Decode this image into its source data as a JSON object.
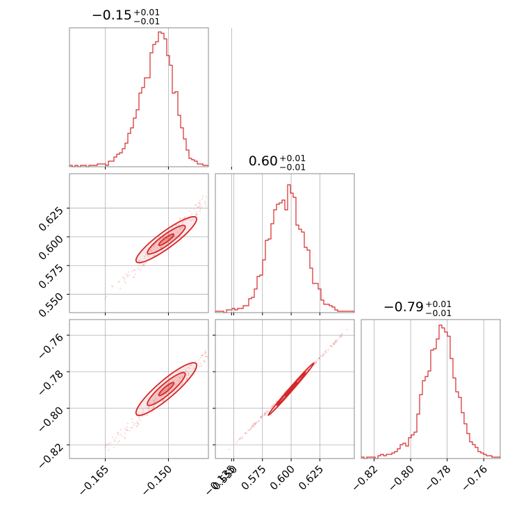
{
  "chart_data": {
    "type": "corner",
    "color": "#d62728",
    "grid": true,
    "parameters": [
      {
        "title": {
          "value": "−0.15",
          "plus": "+0.01",
          "minus": "−0.01"
        },
        "range": [
          -0.1735,
          -0.1405
        ],
        "ticks": [
          -0.165,
          -0.15,
          -0.135
        ],
        "tick_labels": [
          "−0.165",
          "−0.150",
          "−0.135"
        ],
        "hist_values": [
          0.01,
          0,
          0.01,
          0,
          0.01,
          0.01,
          0,
          0.01,
          0.01,
          0.01,
          0.02,
          0.02,
          0.02,
          0.01,
          0.04,
          0.04,
          0.07,
          0.09,
          0.1,
          0.13,
          0.17,
          0.24,
          0.28,
          0.35,
          0.41,
          0.53,
          0.57,
          0.64,
          0.64,
          0.82,
          0.88,
          0.9,
          0.97,
          0.96,
          0.92,
          0.8,
          0.73,
          0.53,
          0.54,
          0.37,
          0.28,
          0.2,
          0.12,
          0.06,
          0.05,
          0.04,
          0.02,
          0.02,
          0.01,
          0.01
        ]
      },
      {
        "title": {
          "value": "0.60",
          "plus": "+0.01",
          "minus": "−0.01"
        },
        "range": [
          0.534,
          0.655
        ],
        "ticks": [
          0.55,
          0.575,
          0.6,
          0.625
        ],
        "tick_labels": [
          "0.550",
          "0.575",
          "0.600",
          "0.625"
        ],
        "hist_values": [
          0.01,
          0.01,
          0.01,
          0,
          0.02,
          0.02,
          0.03,
          0.02,
          0.03,
          0.03,
          0.05,
          0.05,
          0.1,
          0.11,
          0.17,
          0.26,
          0.27,
          0.38,
          0.52,
          0.53,
          0.64,
          0.74,
          0.78,
          0.79,
          0.81,
          0.74,
          0.92,
          0.86,
          0.83,
          0.63,
          0.6,
          0.58,
          0.47,
          0.45,
          0.32,
          0.21,
          0.21,
          0.17,
          0.09,
          0.06,
          0.06,
          0.05,
          0.04,
          0.02,
          0.01,
          0.01,
          0.01,
          0.01,
          0.01,
          0.01
        ]
      },
      {
        "title": {
          "value": "−0.79",
          "plus": "+0.01",
          "minus": "−0.01"
        },
        "range": [
          -0.827,
          -0.751
        ],
        "ticks": [
          -0.82,
          -0.8,
          -0.78,
          -0.76
        ],
        "tick_labels": [
          "−0.82",
          "−0.80",
          "−0.78",
          "−0.76"
        ],
        "hist_values": [
          0.01,
          0,
          0.01,
          0.01,
          0.01,
          0,
          0.02,
          0.03,
          0.02,
          0.03,
          0.03,
          0.04,
          0.05,
          0.07,
          0.1,
          0.11,
          0.09,
          0.15,
          0.17,
          0.19,
          0.32,
          0.46,
          0.56,
          0.59,
          0.63,
          0.78,
          0.79,
          0.86,
          0.96,
          0.94,
          0.91,
          0.88,
          0.72,
          0.58,
          0.48,
          0.44,
          0.33,
          0.25,
          0.18,
          0.12,
          0.1,
          0.08,
          0.05,
          0.04,
          0.03,
          0.02,
          0.02,
          0.01,
          0.01,
          0.01
        ]
      }
    ],
    "pairs": [
      {
        "row": 1,
        "col": 0,
        "center": [
          -0.1505,
          0.5975
        ],
        "sigma": [
          0.0045,
          0.0125
        ],
        "rho": 0.9,
        "contour_levels": [
          0.4,
          1.0,
          1.6
        ],
        "scatter_extent": [
          [
            -0.165,
            0.546
          ],
          [
            -0.137,
            0.647
          ]
        ]
      },
      {
        "row": 2,
        "col": 0,
        "center": [
          -0.1505,
          -0.7895
        ],
        "sigma": [
          0.0045,
          0.009
        ],
        "rho": 0.9,
        "contour_levels": [
          0.4,
          1.0,
          1.6
        ],
        "scatter_extent": [
          [
            -0.165,
            -0.823
          ],
          [
            -0.136,
            -0.761
          ]
        ]
      },
      {
        "row": 2,
        "col": 1,
        "center": [
          0.6,
          -0.7895
        ],
        "sigma": [
          0.0125,
          0.009
        ],
        "rho": 0.995,
        "contour_levels": [
          0.4,
          1.0,
          1.6
        ],
        "scatter_extent": [
          [
            0.546,
            -0.823
          ],
          [
            0.649,
            -0.757
          ]
        ]
      }
    ],
    "rows": [
      {
        "row": 1,
        "range": [
          0.534,
          0.655
        ],
        "ticks": [
          0.55,
          0.575,
          0.6,
          0.625
        ],
        "tick_labels": [
          "0.550",
          "0.575",
          "0.600",
          "0.625"
        ]
      },
      {
        "row": 2,
        "range": [
          -0.8275,
          -0.7515
        ],
        "ticks": [
          -0.82,
          -0.8,
          -0.78,
          -0.76
        ],
        "tick_labels": [
          "−0.82",
          "−0.80",
          "−0.78",
          "−0.76"
        ]
      }
    ]
  }
}
